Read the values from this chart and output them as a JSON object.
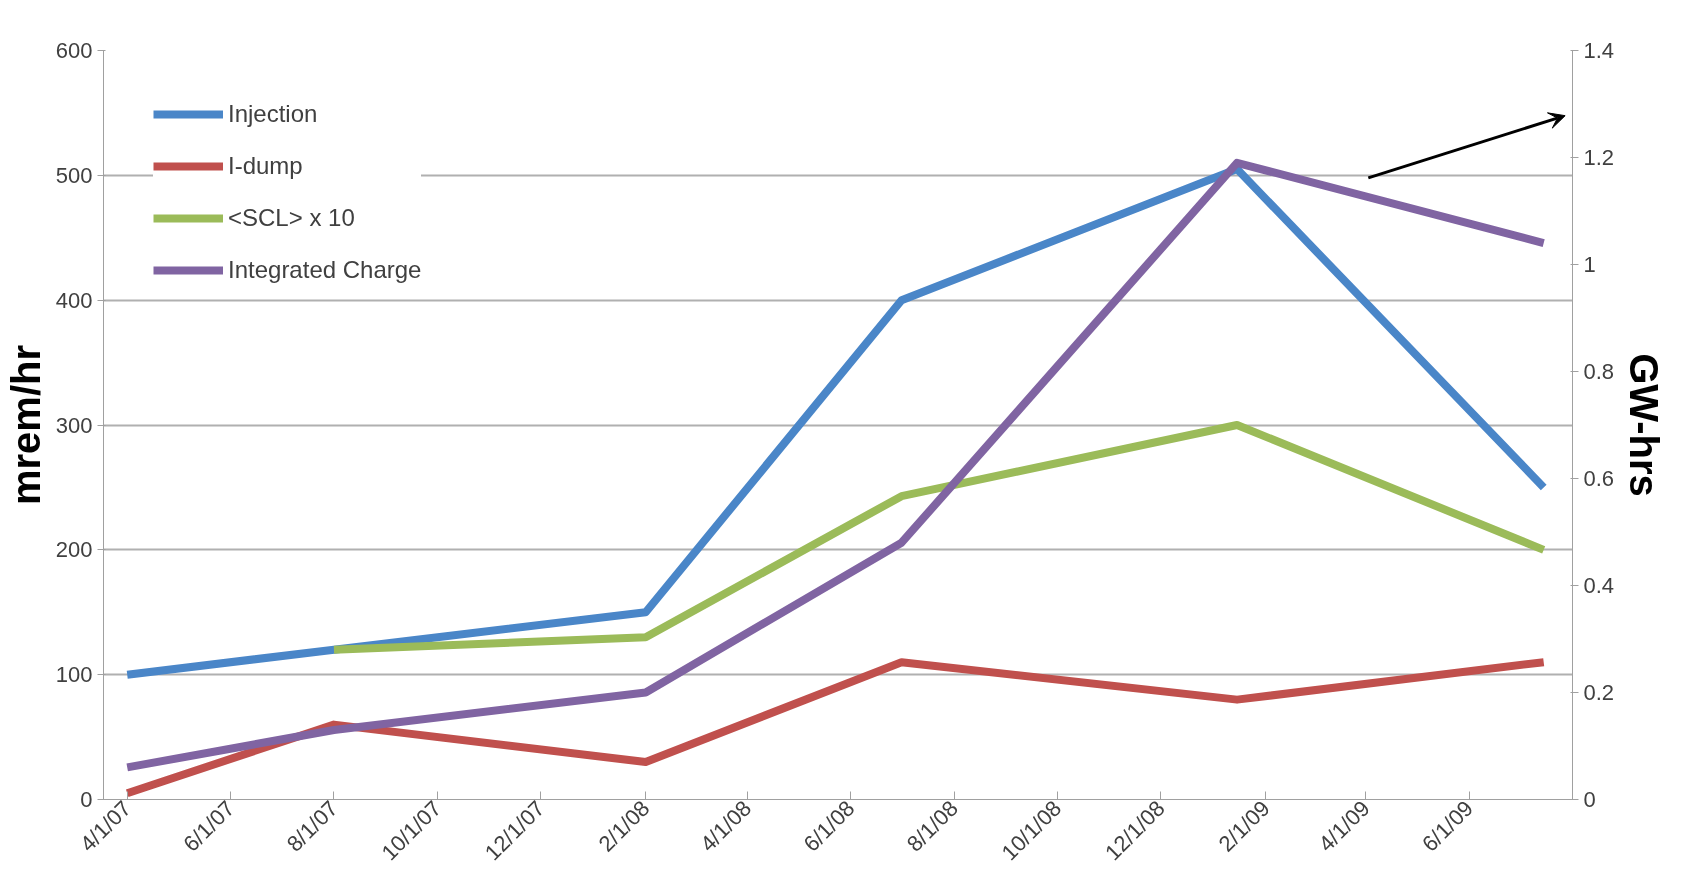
{
  "chart_data": {
    "type": "line",
    "ylabel": "mrem/hr",
    "y2label": "GW-hrs",
    "x": [
      "2007-04-01",
      "2007-08-01",
      "2008-02-01",
      "2008-07-01",
      "2009-01-15",
      "2009-07-15"
    ],
    "series": [
      {
        "name": "Injection",
        "color": "#4a86c8",
        "values": [
          100,
          120,
          150,
          400,
          505,
          250
        ]
      },
      {
        "name": "I-dump",
        "color": "#c0504d",
        "values": [
          5,
          60,
          30,
          110,
          80,
          110
        ]
      },
      {
        "name": "<SCL> x 10",
        "color": "#9bbb59",
        "values": [
          null,
          120,
          130,
          243,
          300,
          200
        ]
      },
      {
        "name": "Integrated Charge",
        "color": "#8064a2",
        "axis": "y2",
        "values": [
          0.06,
          0.13,
          0.2,
          0.48,
          1.19,
          1.04
        ]
      }
    ],
    "xlim": [
      "2007-03-18",
      "2009-08-01"
    ],
    "xticks": [
      {
        "value": "2007-04-01",
        "label": "4/1/07"
      },
      {
        "value": "2007-06-01",
        "label": "6/1/07"
      },
      {
        "value": "2007-08-01",
        "label": "8/1/07"
      },
      {
        "value": "2007-10-01",
        "label": "10/1/07"
      },
      {
        "value": "2007-12-01",
        "label": "12/1/07"
      },
      {
        "value": "2008-02-01",
        "label": "2/1/08"
      },
      {
        "value": "2008-04-01",
        "label": "4/1/08"
      },
      {
        "value": "2008-06-01",
        "label": "6/1/08"
      },
      {
        "value": "2008-08-01",
        "label": "8/1/08"
      },
      {
        "value": "2008-10-01",
        "label": "10/1/08"
      },
      {
        "value": "2008-12-01",
        "label": "12/1/08"
      },
      {
        "value": "2009-02-01",
        "label": "2/1/09"
      },
      {
        "value": "2009-04-01",
        "label": "4/1/09"
      },
      {
        "value": "2009-06-01",
        "label": "6/1/09"
      }
    ],
    "ylim": [
      0,
      600
    ],
    "yticks": [
      0,
      100,
      200,
      300,
      400,
      500,
      600
    ],
    "y2lim": [
      0,
      1.4
    ],
    "y2ticks": [
      0,
      0.2,
      0.4,
      0.6,
      0.8,
      1,
      1.2,
      1.4
    ],
    "grid": "y",
    "legend": "top left",
    "marker": "none",
    "line_style": "solid"
  }
}
